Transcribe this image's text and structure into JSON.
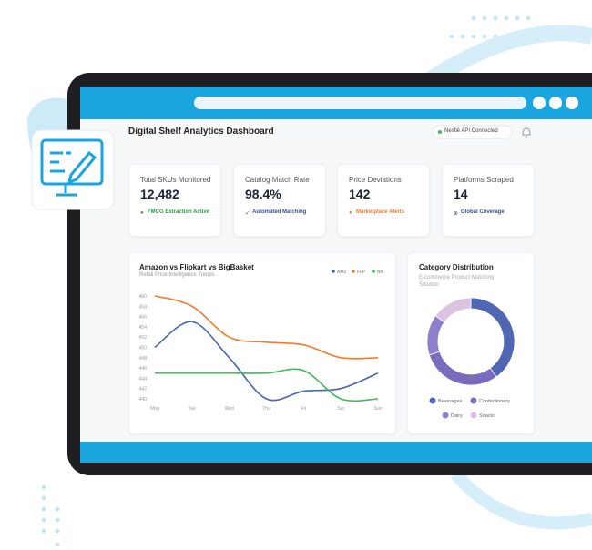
{
  "header": {
    "title": "Digital Shelf Analytics Dashboard",
    "status": "Nestlé API Connected"
  },
  "kpis": [
    {
      "label": "Total SKUs Monitored",
      "value": "12,482",
      "note": "FMCG Extraction Active"
    },
    {
      "label": "Catalog Match Rate",
      "value": "98.4%",
      "note": "Automated Matching"
    },
    {
      "label": "Price Deviations",
      "value": "142",
      "note": "Marketplace Alerts"
    },
    {
      "label": "Platforms Scraped",
      "value": "14",
      "note": "Global Coverage"
    }
  ],
  "chart_data": [
    {
      "type": "line",
      "title": "Amazon vs Flipkart vs BigBasket",
      "subtitle": "Retail Price Intelligence Trends",
      "categories": [
        "Mon",
        "Tue",
        "Wed",
        "Thu",
        "Fri",
        "Sat",
        "Sun"
      ],
      "ylim": [
        440,
        460
      ],
      "yticks": [
        460,
        458,
        456,
        454,
        452,
        450,
        448,
        446,
        444,
        442,
        440
      ],
      "series": [
        {
          "name": "AMZ",
          "color": "#4a66b0",
          "values": [
            450,
            455,
            448,
            440,
            441.5,
            442,
            445
          ]
        },
        {
          "name": "FLP",
          "color": "#f07b2e",
          "values": [
            460,
            458,
            452,
            451,
            450.5,
            448,
            448
          ]
        },
        {
          "name": "BB",
          "color": "#3fb957",
          "values": [
            445,
            445,
            445,
            445,
            445.5,
            440,
            440
          ]
        }
      ]
    },
    {
      "type": "pie",
      "donut": true,
      "title": "Category Distribution",
      "subtitle": "E-commerce Product Matching Solution",
      "categories": [
        "Beverages",
        "Confectionery",
        "Dairy",
        "Snacks"
      ],
      "values": [
        40,
        30,
        15,
        15
      ],
      "colors": [
        "#4f66b3",
        "#7a6bbd",
        "#8d7fca",
        "#dcc3e2"
      ]
    }
  ]
}
